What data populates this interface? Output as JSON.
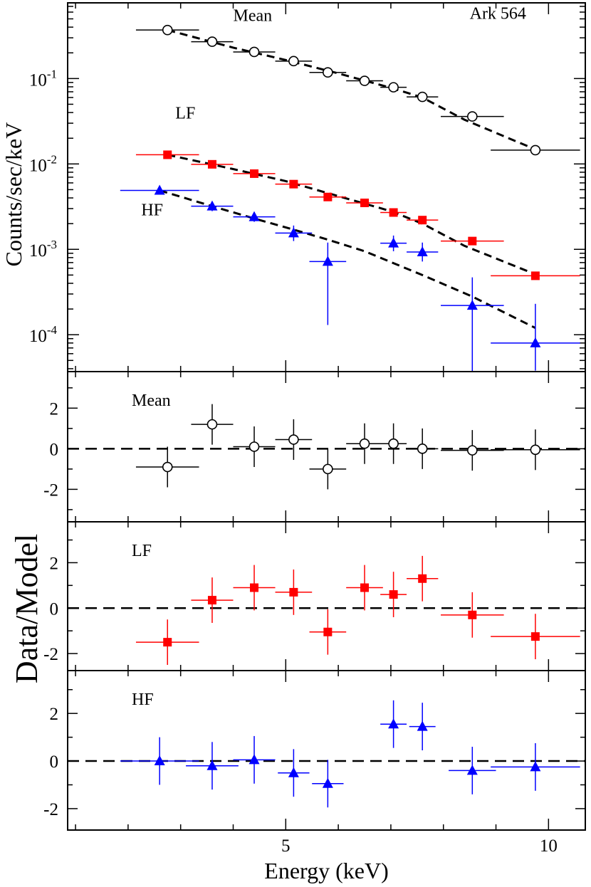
{
  "chart_data": {
    "type": "scatter",
    "title": "Ark 564",
    "xlabel": "Energy (keV)",
    "xlim": [
      0.85,
      10.7
    ],
    "xticks": [
      {
        "value": 5,
        "label": "5"
      },
      {
        "value": 10,
        "label": "10"
      }
    ],
    "panels": [
      {
        "id": "spectrum",
        "ylabel": "Counts/sec/keV",
        "yscale": "log",
        "ylim": [
          3.7e-05,
          0.77
        ],
        "yticks": [
          {
            "value": 0.1,
            "base": "10",
            "exp": "-1"
          },
          {
            "value": 0.01,
            "base": "10",
            "exp": "-2"
          },
          {
            "value": 0.001,
            "base": "10",
            "exp": "-3"
          },
          {
            "value": 0.0001,
            "base": "10",
            "exp": "-4"
          }
        ],
        "annotations": [
          {
            "text": "Mean",
            "x": 4.0,
            "y": 0.47
          },
          {
            "text": "Ark 564",
            "x": 8.5,
            "y": 0.5
          },
          {
            "text": "LF",
            "x": 2.9,
            "y": 0.034
          },
          {
            "text": "HF",
            "x": 2.25,
            "y": 0.0025
          }
        ],
        "series": [
          {
            "name": "Mean",
            "color": "#000000",
            "marker": "circle-open",
            "points": [
              {
                "x": 2.75,
                "y": 0.37,
                "xerr": 0.6,
                "yerr": [
                  0.36,
                  0.38
                ]
              },
              {
                "x": 3.6,
                "y": 0.27,
                "xerr": 0.4,
                "yerr": [
                  0.26,
                  0.28
                ]
              },
              {
                "x": 4.4,
                "y": 0.205,
                "xerr": 0.4,
                "yerr": [
                  0.2,
                  0.21
                ]
              },
              {
                "x": 5.15,
                "y": 0.16,
                "xerr": 0.35,
                "yerr": [
                  0.155,
                  0.165
                ]
              },
              {
                "x": 5.8,
                "y": 0.118,
                "xerr": 0.35,
                "yerr": [
                  0.114,
                  0.122
                ]
              },
              {
                "x": 6.5,
                "y": 0.094,
                "xerr": 0.35,
                "yerr": [
                  0.091,
                  0.097
                ]
              },
              {
                "x": 7.05,
                "y": 0.079,
                "xerr": 0.25,
                "yerr": [
                  0.076,
                  0.082
                ]
              },
              {
                "x": 7.6,
                "y": 0.061,
                "xerr": 0.3,
                "yerr": [
                  0.058,
                  0.064
                ]
              },
              {
                "x": 8.55,
                "y": 0.036,
                "xerr": 0.6,
                "yerr": [
                  0.034,
                  0.038
                ]
              },
              {
                "x": 9.75,
                "y": 0.0145,
                "xerr": 0.85,
                "yerr": [
                  0.0138,
                  0.0152
                ]
              }
            ],
            "model": [
              [
                2.75,
                0.37
              ],
              [
                4.0,
                0.23
              ],
              [
                5.0,
                0.165
              ],
              [
                6.0,
                0.115
              ],
              [
                7.0,
                0.078
              ],
              [
                7.6,
                0.06
              ],
              [
                8.4,
                0.033
              ],
              [
                9.75,
                0.0148
              ]
            ]
          },
          {
            "name": "LF",
            "color": "#ff0000",
            "marker": "square",
            "points": [
              {
                "x": 2.75,
                "y": 0.0128,
                "xerr": 0.6,
                "yerr": [
                  0.0124,
                  0.0132
                ]
              },
              {
                "x": 3.6,
                "y": 0.0099,
                "xerr": 0.4,
                "yerr": [
                  0.0096,
                  0.0102
                ]
              },
              {
                "x": 4.4,
                "y": 0.0077,
                "xerr": 0.4,
                "yerr": [
                  0.0074,
                  0.008
                ]
              },
              {
                "x": 5.15,
                "y": 0.0058,
                "xerr": 0.35,
                "yerr": [
                  0.0056,
                  0.006
                ]
              },
              {
                "x": 5.8,
                "y": 0.0041,
                "xerr": 0.35,
                "yerr": [
                  0.0039,
                  0.0043
                ]
              },
              {
                "x": 6.5,
                "y": 0.0035,
                "xerr": 0.35,
                "yerr": [
                  0.0033,
                  0.0037
                ]
              },
              {
                "x": 7.05,
                "y": 0.0027,
                "xerr": 0.25,
                "yerr": [
                  0.0025,
                  0.0029
                ]
              },
              {
                "x": 7.6,
                "y": 0.0022,
                "xerr": 0.3,
                "yerr": [
                  0.0021,
                  0.0023
                ]
              },
              {
                "x": 8.55,
                "y": 0.00125,
                "xerr": 0.6,
                "yerr": [
                  0.0012,
                  0.0013
                ]
              },
              {
                "x": 9.75,
                "y": 0.00049,
                "xerr": 0.85,
                "yerr": [
                  0.00047,
                  0.00051
                ]
              }
            ],
            "model": [
              [
                2.75,
                0.0128
              ],
              [
                4.0,
                0.0087
              ],
              [
                5.0,
                0.0063
              ],
              [
                6.0,
                0.0042
              ],
              [
                7.0,
                0.0028
              ],
              [
                7.6,
                0.002
              ],
              [
                8.4,
                0.0011
              ],
              [
                9.75,
                0.00051
              ]
            ]
          },
          {
            "name": "HF",
            "color": "#0000ff",
            "marker": "triangle",
            "points": [
              {
                "x": 2.6,
                "y": 0.0049,
                "xerr": 0.75,
                "yerr": [
                  0.0046,
                  0.0052
                ]
              },
              {
                "x": 3.6,
                "y": 0.0032,
                "xerr": 0.4,
                "yerr": [
                  0.0028,
                  0.0036
                ]
              },
              {
                "x": 4.4,
                "y": 0.0024,
                "xerr": 0.4,
                "yerr": [
                  0.0021,
                  0.0027
                ]
              },
              {
                "x": 5.15,
                "y": 0.00155,
                "xerr": 0.35,
                "yerr": [
                  0.00125,
                  0.0019
                ]
              },
              {
                "x": 5.8,
                "y": 0.00072,
                "xerr": 0.35,
                "yerr": [
                  0.00013,
                  0.0012
                ]
              },
              {
                "x": 7.05,
                "y": 0.00118,
                "xerr": 0.25,
                "yerr": [
                  0.00095,
                  0.00145
                ]
              },
              {
                "x": 7.6,
                "y": 0.00093,
                "xerr": 0.3,
                "yerr": [
                  0.00072,
                  0.0012
                ]
              },
              {
                "x": 8.55,
                "y": 0.00022,
                "xerr": 0.6,
                "yerr": [
                  3.7e-05,
                  0.00047
                ]
              },
              {
                "x": 9.75,
                "y": 8e-05,
                "xerr": 0.85,
                "yerr": [
                  3.8e-05,
                  0.00023
                ]
              }
            ],
            "model": [
              [
                2.6,
                0.0049
              ],
              [
                3.6,
                0.0032
              ],
              [
                4.4,
                0.0023
              ],
              [
                5.15,
                0.0017
              ],
              [
                5.8,
                0.0013
              ],
              [
                6.5,
                0.00095
              ],
              [
                7.6,
                0.0005
              ],
              [
                8.55,
                0.00028
              ],
              [
                9.75,
                0.00012
              ]
            ]
          }
        ]
      },
      {
        "id": "residual-mean",
        "label": "Mean",
        "color": "#000000",
        "marker": "circle-open",
        "yscale": "linear",
        "ylim": [
          -3.6,
          3.8
        ],
        "refline": 0,
        "yticks": [
          {
            "value": 2,
            "label": "2"
          },
          {
            "value": 0,
            "label": "0"
          },
          {
            "value": -2,
            "label": "-2"
          }
        ],
        "points": [
          {
            "x": 2.75,
            "y": -0.9,
            "xerr": 0.6,
            "yerr": 1.0
          },
          {
            "x": 3.6,
            "y": 1.2,
            "xerr": 0.4,
            "yerr": 1.0
          },
          {
            "x": 4.4,
            "y": 0.1,
            "xerr": 0.4,
            "yerr": 1.0
          },
          {
            "x": 5.15,
            "y": 0.45,
            "xerr": 0.35,
            "yerr": 1.0
          },
          {
            "x": 5.8,
            "y": -1.0,
            "xerr": 0.35,
            "yerr": 1.0
          },
          {
            "x": 6.5,
            "y": 0.25,
            "xerr": 0.35,
            "yerr": 1.0
          },
          {
            "x": 7.05,
            "y": 0.25,
            "xerr": 0.25,
            "yerr": 1.0
          },
          {
            "x": 7.6,
            "y": 0.0,
            "xerr": 0.3,
            "yerr": 1.0
          },
          {
            "x": 8.55,
            "y": -0.08,
            "xerr": 0.6,
            "yerr": 1.0
          },
          {
            "x": 9.75,
            "y": -0.05,
            "xerr": 0.85,
            "yerr": 1.0
          }
        ]
      },
      {
        "id": "residual-lf",
        "label": "LF",
        "color": "#ff0000",
        "marker": "square",
        "yscale": "linear",
        "ylim": [
          -2.75,
          3.8
        ],
        "refline": 0,
        "yticks": [
          {
            "value": 2,
            "label": "2"
          },
          {
            "value": 0,
            "label": "0"
          },
          {
            "value": -2,
            "label": "-2"
          }
        ],
        "points": [
          {
            "x": 2.75,
            "y": -1.5,
            "xerr": 0.6,
            "yerr": 1.0
          },
          {
            "x": 3.6,
            "y": 0.35,
            "xerr": 0.4,
            "yerr": 1.0
          },
          {
            "x": 4.4,
            "y": 0.9,
            "xerr": 0.4,
            "yerr": 1.0
          },
          {
            "x": 5.15,
            "y": 0.7,
            "xerr": 0.35,
            "yerr": 1.0
          },
          {
            "x": 5.8,
            "y": -1.05,
            "xerr": 0.35,
            "yerr": 1.0
          },
          {
            "x": 6.5,
            "y": 0.9,
            "xerr": 0.35,
            "yerr": 1.0
          },
          {
            "x": 7.05,
            "y": 0.6,
            "xerr": 0.25,
            "yerr": 1.0
          },
          {
            "x": 7.6,
            "y": 1.3,
            "xerr": 0.3,
            "yerr": 1.0
          },
          {
            "x": 8.55,
            "y": -0.3,
            "xerr": 0.6,
            "yerr": 1.0
          },
          {
            "x": 9.75,
            "y": -1.25,
            "xerr": 0.85,
            "yerr": 1.0
          }
        ]
      },
      {
        "id": "residual-hf",
        "label": "HF",
        "color": "#0000ff",
        "marker": "triangle",
        "yscale": "linear",
        "ylim": [
          -2.9,
          3.8
        ],
        "refline": 0,
        "yticks": [
          {
            "value": 2,
            "label": "2"
          },
          {
            "value": 0,
            "label": "0"
          },
          {
            "value": -2,
            "label": "-2"
          }
        ],
        "points": [
          {
            "x": 2.6,
            "y": 0.0,
            "xerr": 0.75,
            "yerr": 1.0
          },
          {
            "x": 3.6,
            "y": -0.2,
            "xerr": 0.5,
            "yerr": 1.0
          },
          {
            "x": 4.4,
            "y": 0.05,
            "xerr": 0.4,
            "yerr": 1.0
          },
          {
            "x": 5.15,
            "y": -0.5,
            "xerr": 0.3,
            "yerr": 1.0
          },
          {
            "x": 5.8,
            "y": -0.95,
            "xerr": 0.3,
            "yerr": 1.0
          },
          {
            "x": 7.05,
            "y": 1.55,
            "xerr": 0.25,
            "yerr": 1.0
          },
          {
            "x": 7.6,
            "y": 1.45,
            "xerr": 0.25,
            "yerr": 1.0
          },
          {
            "x": 8.55,
            "y": -0.4,
            "xerr": 0.45,
            "yerr": 1.0
          },
          {
            "x": 9.75,
            "y": -0.25,
            "xerr": 0.85,
            "yerr": 1.0
          }
        ]
      }
    ],
    "shared_ylabel": "Data/Model"
  }
}
